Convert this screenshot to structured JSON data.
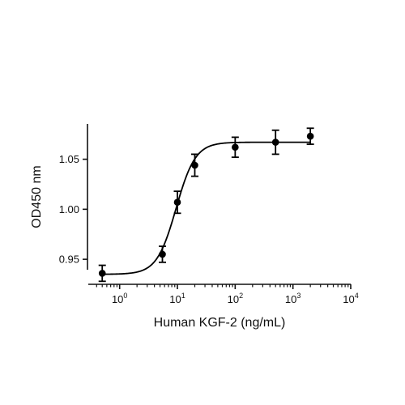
{
  "chart_data": {
    "type": "scatter",
    "title": "",
    "xlabel": "Human KGF-2 (ng/mL)",
    "ylabel": "OD450 nm",
    "x_scale": "log",
    "xlim": [
      0.316,
      10000
    ],
    "ylim": [
      0.925,
      1.095
    ],
    "x_ticks": [
      {
        "value": 1,
        "base": "10",
        "exp": "0"
      },
      {
        "value": 10,
        "base": "10",
        "exp": "1"
      },
      {
        "value": 100,
        "base": "10",
        "exp": "2"
      },
      {
        "value": 1000,
        "base": "10",
        "exp": "3"
      },
      {
        "value": 10000,
        "base": "10",
        "exp": "4"
      }
    ],
    "y_ticks": [
      {
        "value": 0.95,
        "label": "0.95"
      },
      {
        "value": 1.0,
        "label": "1.00"
      },
      {
        "value": 1.05,
        "label": "1.05"
      }
    ],
    "grid": false,
    "legend": "none",
    "series": [
      {
        "marker": "circle",
        "color": "#000000",
        "points": [
          {
            "x": 0.5,
            "y": 0.936,
            "err": 0.008
          },
          {
            "x": 5.5,
            "y": 0.955,
            "err": 0.008
          },
          {
            "x": 10,
            "y": 1.007,
            "err": 0.011
          },
          {
            "x": 20,
            "y": 1.044,
            "err": 0.011
          },
          {
            "x": 100,
            "y": 1.062,
            "err": 0.01
          },
          {
            "x": 500,
            "y": 1.067,
            "err": 0.012
          },
          {
            "x": 2000,
            "y": 1.073,
            "err": 0.008
          }
        ]
      }
    ],
    "fit": {
      "type": "4PL",
      "bottom": 0.935,
      "top": 1.067,
      "ec50": 9.5,
      "hill": 2.6,
      "x_range": [
        0.5,
        2000
      ],
      "color": "#000000"
    }
  }
}
